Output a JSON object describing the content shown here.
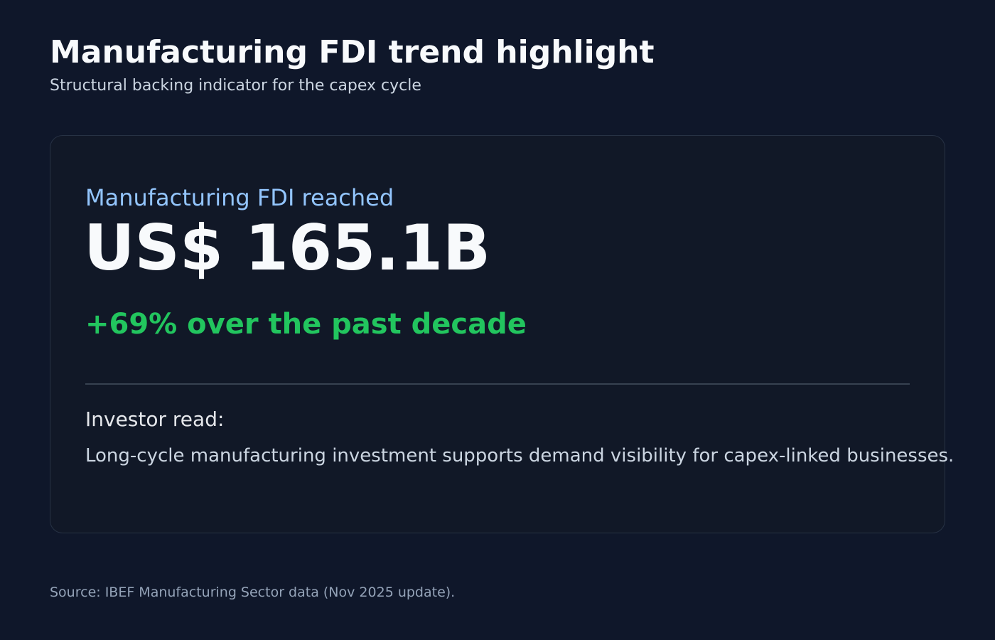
{
  "header": {
    "title": "Manufacturing FDI trend highlight",
    "subtitle": "Structural backing indicator for the capex cycle"
  },
  "card": {
    "label": "Manufacturing FDI reached",
    "value": "US$ 165.1B",
    "change": "+69% over the past decade",
    "note_label": "Investor read:",
    "note_text": "Long-cycle manufacturing investment supports demand visibility for capex-linked businesses."
  },
  "footer": {
    "source": "Source: IBEF Manufacturing Sector data (Nov 2025 update)."
  }
}
